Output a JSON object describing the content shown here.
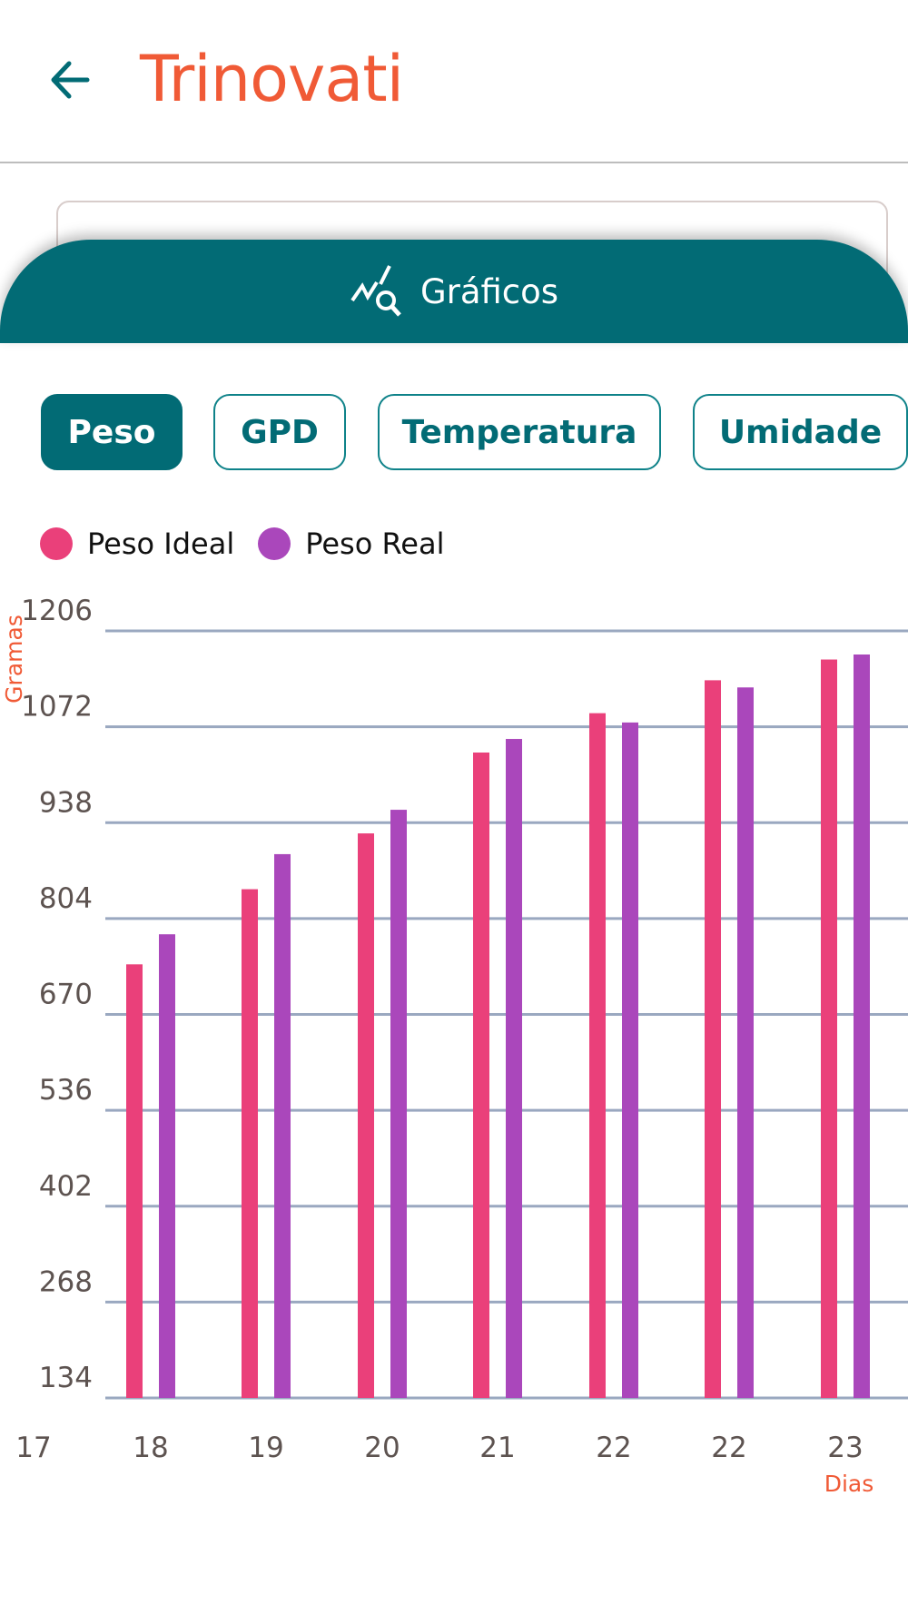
{
  "header": {
    "title": "Trinovati",
    "back_icon": "arrow-left-icon"
  },
  "banner": {
    "label": "Gráficos",
    "icon": "chart-search-icon"
  },
  "tabs": [
    {
      "label": "Peso",
      "active": true
    },
    {
      "label": "GPD",
      "active": false
    },
    {
      "label": "Temperatura",
      "active": false
    },
    {
      "label": "Umidade",
      "active": false
    }
  ],
  "colors": {
    "accent": "#026b75",
    "brand": "#f05a36",
    "ideal": "#ea407a",
    "real": "#aa47bb",
    "grid": "#9aa8c0"
  },
  "chart_data": {
    "type": "bar",
    "ylabel": "Gramas",
    "xlabel": "Dias",
    "yticks": [
      134,
      268,
      402,
      536,
      670,
      804,
      938,
      1072,
      1206
    ],
    "ylim": [
      134,
      1206
    ],
    "grid": true,
    "legend_position": "top-left",
    "xticks": [
      "17",
      "18",
      "19",
      "20",
      "21",
      "22",
      "22",
      "23"
    ],
    "categories": [
      "18",
      "19",
      "20",
      "21",
      "22",
      "22",
      "23"
    ],
    "series": [
      {
        "name": "Peso Ideal",
        "values": [
          740,
          845,
          923,
          1036,
          1091,
          1137,
          1166
        ]
      },
      {
        "name": "Peso Real",
        "values": [
          782,
          894,
          956,
          1055,
          1078,
          1127,
          1173
        ]
      }
    ]
  }
}
